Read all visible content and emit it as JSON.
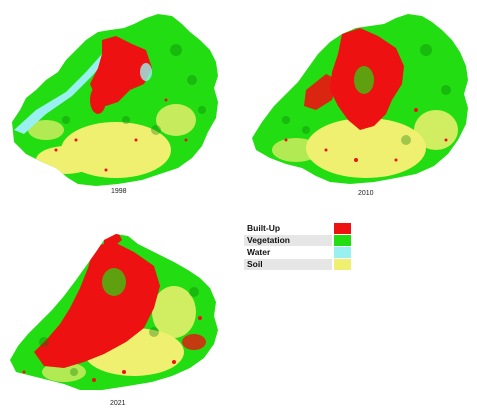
{
  "maps": [
    {
      "year": "1998"
    },
    {
      "year": "2010"
    },
    {
      "year": "2021"
    }
  ],
  "legend": [
    {
      "label": "Built-Up",
      "color": "#ee1111"
    },
    {
      "label": "Vegetation",
      "color": "#22dd11"
    },
    {
      "label": "Water",
      "color": "#99f0f0"
    },
    {
      "label": "Soil",
      "color": "#f0f070"
    }
  ]
}
